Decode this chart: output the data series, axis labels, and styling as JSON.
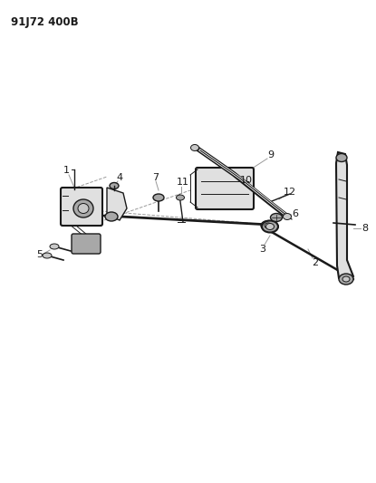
{
  "title": "91J72 400B",
  "bg": "#ffffff",
  "lc": "#1a1a1a",
  "fig_w": 4.15,
  "fig_h": 5.33,
  "dpi": 100,
  "gray1": "#c8c8c8",
  "gray2": "#a8a8a8",
  "gray3": "#e0e0e0",
  "gray_dash": "#999999"
}
